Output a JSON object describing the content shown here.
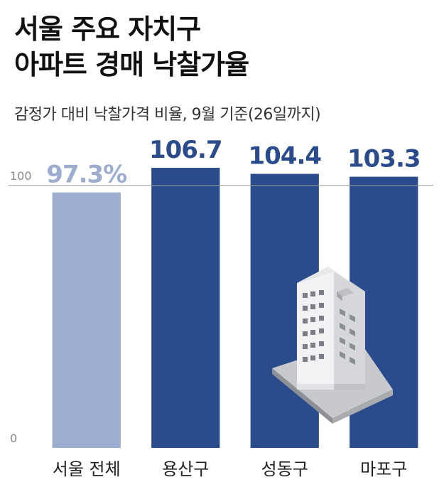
{
  "header": {
    "title_line1": "서울 주요 자치구",
    "title_line2": "아파트 경매 낙찰가율",
    "subtitle": "감정가 대비 낙찰가격 비율, 9월 기준(26일까지)"
  },
  "colors": {
    "highlight_bar": "#2b4c8c",
    "base_bar": "#9dadd0",
    "highlight_label": "#2b4c8c",
    "base_label": "#9dadd0",
    "reference_line": "#999999"
  },
  "illustration": "apartment-building-icon",
  "chart_data": {
    "type": "bar",
    "title": "서울 주요 자치구 아파트 경매 낙찰가율",
    "subtitle": "감정가 대비 낙찰가격 비율, 9월 기준(26일까지)",
    "categories": [
      "서울 전체",
      "용산구",
      "성동구",
      "마포구"
    ],
    "values": [
      97.3,
      106.7,
      104.4,
      103.3
    ],
    "value_labels": [
      "97.3%",
      "106.7",
      "104.4",
      "103.3"
    ],
    "highlight": [
      false,
      true,
      true,
      true
    ],
    "ylim": [
      0,
      117
    ],
    "yticks": [
      0,
      100
    ],
    "ytick_labels": [
      "0",
      "100"
    ],
    "reference_line": 100,
    "xlabel": "",
    "ylabel": "",
    "grid": false,
    "legend": "none"
  }
}
